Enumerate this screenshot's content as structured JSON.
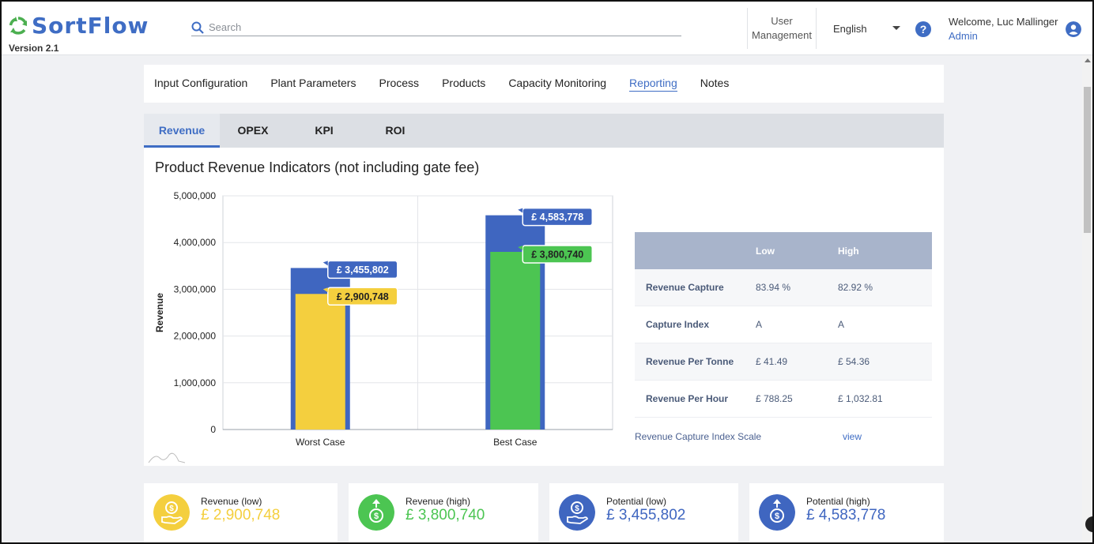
{
  "app": {
    "name": "SortFlow",
    "version": "Version 2.1",
    "brand_color": "#3f6dc4",
    "logo_color": "#4caf50"
  },
  "header": {
    "search_placeholder": "Search",
    "user_management_line1": "User",
    "user_management_line2": "Management",
    "language": "English",
    "help_icon": "?",
    "welcome": "Welcome, Luc Mallinger",
    "role": "Admin"
  },
  "main_tabs": [
    {
      "label": "Input Configuration",
      "active": false
    },
    {
      "label": "Plant Parameters",
      "active": false
    },
    {
      "label": "Process",
      "active": false
    },
    {
      "label": "Products",
      "active": false
    },
    {
      "label": "Capacity Monitoring",
      "active": false
    },
    {
      "label": "Reporting",
      "active": true
    },
    {
      "label": "Notes",
      "active": false
    }
  ],
  "sub_tabs": [
    {
      "label": "Revenue",
      "active": true
    },
    {
      "label": "OPEX",
      "active": false
    },
    {
      "label": "KPI",
      "active": false
    },
    {
      "label": "ROI",
      "active": false
    }
  ],
  "panel_title": "Product Revenue Indicators (not including gate fee)",
  "chart_data": {
    "type": "bar",
    "title": "",
    "xlabel": "",
    "ylabel": "Revenue",
    "ylim": [
      0,
      5000000
    ],
    "yticks": [
      "0",
      "1,000,000",
      "2,000,000",
      "3,000,000",
      "4,000,000",
      "5,000,000"
    ],
    "categories": [
      "Worst Case",
      "Best Case"
    ],
    "series": [
      {
        "values": [
          3455802,
          4583778
        ],
        "color": "#3f66c0",
        "labels": [
          "£ 3,455,802",
          "£ 4,583,778"
        ]
      },
      {
        "values": [
          2900748,
          3800740
        ],
        "colors": [
          "#f4cf3e",
          "#4cc552"
        ],
        "labels": [
          "£ 2,900,748",
          "£ 3,800,740"
        ]
      }
    ],
    "grid": true
  },
  "metrics_table": {
    "headers": [
      "",
      "Low",
      "High"
    ],
    "rows": [
      [
        "Revenue Capture",
        "83.94 %",
        "82.92 %"
      ],
      [
        "Capture Index",
        "A",
        "A"
      ],
      [
        "Revenue Per Tonne",
        "£ 41.49",
        "£ 54.36"
      ],
      [
        "Revenue Per Hour",
        "£ 788.25",
        "£ 1,032.81"
      ]
    ],
    "scale_label": "Revenue Capture Index Scale",
    "scale_link": "view"
  },
  "cards": [
    {
      "label": "Revenue (low)",
      "value": "£ 2,900,748",
      "color": "#f4cf3e",
      "icon": "hand-coin-icon"
    },
    {
      "label": "Revenue (high)",
      "value": "£ 3,800,740",
      "color": "#4cc552",
      "icon": "coin-up-icon"
    },
    {
      "label": "Potential (low)",
      "value": "£ 3,455,802",
      "color": "#3f66c0",
      "icon": "hand-coin-icon"
    },
    {
      "label": "Potential (high)",
      "value": "£ 4,583,778",
      "color": "#3f66c0",
      "icon": "coin-up-icon"
    }
  ]
}
